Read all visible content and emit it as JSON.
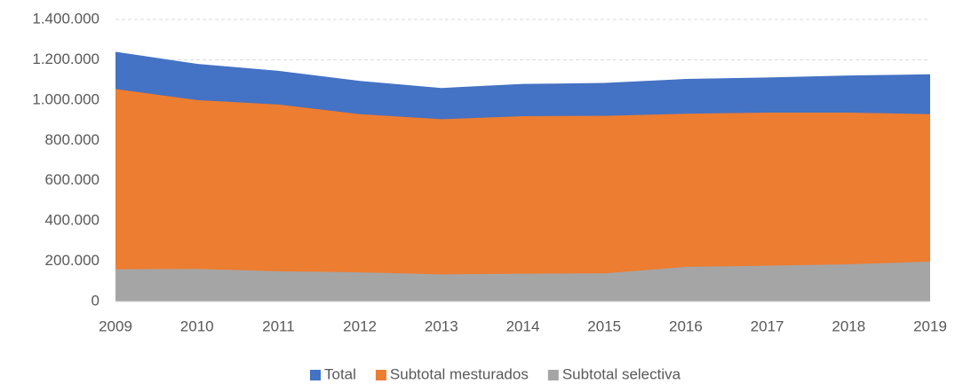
{
  "chart_data": {
    "type": "area",
    "categories": [
      "2009",
      "2010",
      "2011",
      "2012",
      "2013",
      "2014",
      "2015",
      "2016",
      "2017",
      "2018",
      "2019"
    ],
    "series": [
      {
        "name": "Total",
        "color": "#4472c4",
        "values": [
          1240000,
          1180000,
          1145000,
          1095000,
          1060000,
          1080000,
          1085000,
          1105000,
          1112000,
          1122000,
          1128000
        ]
      },
      {
        "name": "Subtotal mesturados",
        "color": "#ed7d31",
        "values": [
          1055000,
          1000000,
          978000,
          930000,
          905000,
          920000,
          922000,
          932000,
          938000,
          938000,
          930000
        ]
      },
      {
        "name": "Subtotal selectiva",
        "color": "#a5a5a5",
        "values": [
          160000,
          162000,
          150000,
          145000,
          135000,
          138000,
          140000,
          172000,
          178000,
          185000,
          198000
        ]
      }
    ],
    "ylim": [
      0,
      1400000
    ],
    "yticks": [
      0,
      {
        "value": 200000,
        "label": "200.000"
      },
      {
        "value": 400000,
        "label": "400.000"
      },
      {
        "value": 600000,
        "label": "600.000"
      },
      {
        "value": 800000,
        "label": "800.000"
      },
      {
        "value": 1000000,
        "label": "1.000.000"
      },
      {
        "value": 1200000,
        "label": "1.200.000"
      },
      {
        "value": 1400000,
        "label": "1.400.000"
      }
    ],
    "grid": true,
    "legend": "bottom"
  }
}
